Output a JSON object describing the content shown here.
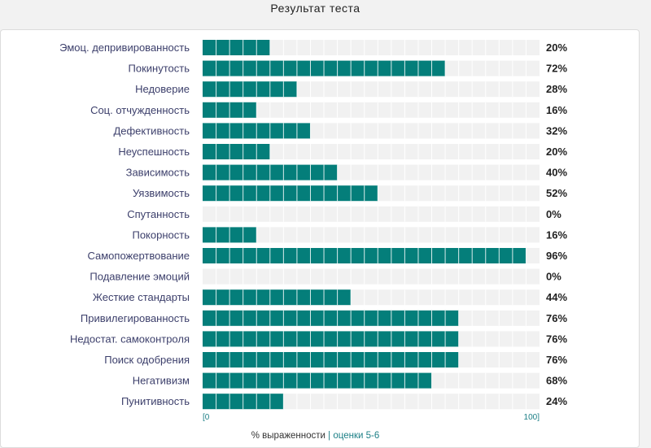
{
  "header": {
    "title": "Результат теста"
  },
  "chart_data": {
    "type": "bar",
    "orientation": "horizontal",
    "categories": [
      "Эмоц. депривированность",
      "Покинутость",
      "Недоверие",
      "Соц. отчужденность",
      "Дефективность",
      "Неуспешность",
      "Зависимость",
      "Уязвимость",
      "Спутанность",
      "Покорность",
      "Самопожертвование",
      "Подавление эмоций",
      "Жесткие стандарты",
      "Привилегированность",
      "Недостат. самоконтроля",
      "Поиск одобрения",
      "Негативизм",
      "Пунитивность"
    ],
    "values": [
      20,
      72,
      28,
      16,
      32,
      20,
      40,
      52,
      0,
      16,
      96,
      0,
      44,
      76,
      76,
      76,
      68,
      24
    ],
    "value_labels": [
      "20%",
      "72%",
      "28%",
      "16%",
      "32%",
      "20%",
      "40%",
      "52%",
      "0%",
      "16%",
      "96%",
      "0%",
      "44%",
      "76%",
      "76%",
      "76%",
      "68%",
      "24%"
    ],
    "xlim": [
      0,
      100
    ],
    "segments": 25,
    "axis_min_label": "[0",
    "axis_max_label": "100]",
    "bar_color": "#047e7a",
    "track_color": "#f1f1f1",
    "grid": false
  },
  "footer": {
    "measure_label": "% выраженности",
    "separator": "|",
    "link_label": "оценки 5-6"
  }
}
